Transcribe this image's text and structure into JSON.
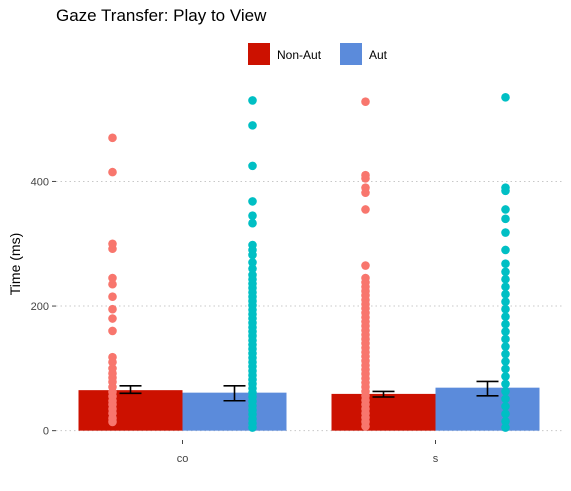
{
  "chart_data": {
    "type": "bar",
    "title": "Gaze Transfer: Play to View",
    "xlabel": "",
    "ylabel": "Time (ms)",
    "categories": [
      "co",
      "s"
    ],
    "ylim": [
      -15,
      550
    ],
    "yticks": [
      0,
      200,
      400
    ],
    "grid": true,
    "legend_position": "top",
    "series": [
      {
        "name": "Non-Aut",
        "color": "#cc1100",
        "point_color": "#f8766d",
        "values": [
          65,
          59
        ],
        "error": [
          [
            60,
            72
          ],
          [
            54,
            63
          ]
        ]
      },
      {
        "name": "Aut",
        "color": "#5b8bdb",
        "point_color": "#00bfc4",
        "values": [
          61,
          69
        ],
        "error": [
          [
            48,
            72
          ],
          [
            56,
            79
          ]
        ]
      }
    ],
    "points": [
      {
        "category": "co",
        "series": "Non-Aut",
        "values": [
          470,
          415,
          300,
          292,
          245,
          235,
          215,
          195,
          180,
          160,
          118,
          110,
          100,
          92,
          85,
          78,
          70,
          62,
          55,
          48,
          42,
          35,
          28,
          20,
          14
        ]
      },
      {
        "category": "co",
        "series": "Aut",
        "values": [
          530,
          490,
          425,
          368,
          345,
          333,
          298,
          290,
          282,
          270,
          260,
          250,
          243,
          236,
          229,
          222,
          215,
          208,
          201,
          194,
          187,
          180,
          173,
          166,
          159,
          152,
          145,
          138,
          131,
          124,
          117,
          110,
          103,
          96,
          89,
          82,
          75,
          68,
          61,
          54,
          47,
          40,
          33,
          26,
          19,
          12,
          5
        ]
      },
      {
        "category": "s",
        "series": "Non-Aut",
        "values": [
          528,
          410,
          405,
          390,
          382,
          355,
          265,
          245,
          238,
          231,
          224,
          217,
          210,
          203,
          196,
          189,
          182,
          175,
          168,
          161,
          154,
          147,
          140,
          133,
          126,
          119,
          112,
          105,
          98,
          91,
          84,
          77,
          70,
          63,
          56,
          49,
          42,
          35,
          28,
          21,
          14,
          7
        ]
      },
      {
        "category": "s",
        "series": "Aut",
        "values": [
          535,
          390,
          385,
          355,
          340,
          318,
          290,
          268,
          255,
          243,
          231,
          219,
          207,
          195,
          183,
          171,
          159,
          147,
          135,
          123,
          111,
          99,
          87,
          75,
          63,
          51,
          39,
          27,
          15,
          5
        ]
      }
    ]
  }
}
